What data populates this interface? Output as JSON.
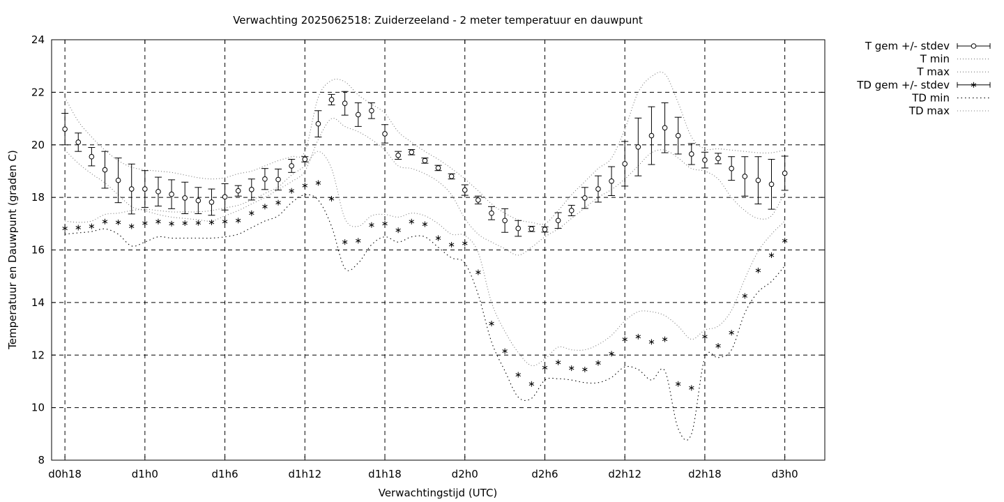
{
  "chart_data": {
    "type": "scatter",
    "title": "Verwachting 2025062518: Zuiderzeeland - 2 meter temperatuur en dauwpunt",
    "xlabel": "Verwachtingstijd (UTC)",
    "ylabel": "Temperatuur en Dauwpunt (graden C)",
    "x_unit": "hours since d0h0",
    "xlim": [
      17,
      75
    ],
    "ylim": [
      8,
      24
    ],
    "y_ticks": [
      8,
      10,
      12,
      14,
      16,
      18,
      20,
      22,
      24
    ],
    "x_ticks": [
      {
        "x": 18,
        "label": "d0h18"
      },
      {
        "x": 24,
        "label": "d1h0"
      },
      {
        "x": 30,
        "label": "d1h6"
      },
      {
        "x": 36,
        "label": "d1h12"
      },
      {
        "x": 42,
        "label": "d1h18"
      },
      {
        "x": 48,
        "label": "d2h0"
      },
      {
        "x": 54,
        "label": "d2h6"
      },
      {
        "x": 60,
        "label": "d2h12"
      },
      {
        "x": 66,
        "label": "d2h18"
      },
      {
        "x": 72,
        "label": "d3h0"
      }
    ],
    "grid": true,
    "legend_position": "outside-right",
    "legend": [
      "T gem +/- stdev",
      "T min",
      "T max",
      "TD gem +/- stdev",
      "TD min",
      "TD max"
    ],
    "x": [
      18,
      19,
      20,
      21,
      22,
      23,
      24,
      25,
      26,
      27,
      28,
      29,
      30,
      31,
      32,
      33,
      34,
      35,
      36,
      37,
      38,
      39,
      40,
      41,
      42,
      43,
      44,
      45,
      46,
      47,
      48,
      49,
      50,
      51,
      52,
      53,
      54,
      55,
      56,
      57,
      58,
      59,
      60,
      61,
      62,
      63,
      64,
      65,
      66,
      67,
      68,
      69,
      70,
      71,
      72
    ],
    "series": [
      {
        "name": "T gem +/- stdev",
        "marker": "circle",
        "values": [
          20.6,
          20.1,
          19.55,
          19.05,
          18.65,
          18.32,
          18.32,
          18.22,
          18.12,
          17.98,
          17.88,
          17.82,
          18.02,
          18.25,
          18.3,
          18.7,
          18.68,
          19.2,
          19.45,
          20.8,
          21.72,
          21.58,
          21.15,
          21.3,
          20.42,
          19.6,
          19.72,
          19.4,
          19.12,
          18.8,
          18.28,
          17.9,
          17.4,
          17.12,
          16.82,
          16.8,
          16.78,
          17.12,
          17.5,
          17.98,
          18.32,
          18.62,
          19.28,
          19.92,
          20.35,
          20.65,
          20.35,
          19.65,
          19.42,
          19.48,
          19.1,
          18.8,
          18.65,
          18.5,
          18.92
        ],
        "stdev": [
          0.6,
          0.35,
          0.35,
          0.7,
          0.85,
          0.95,
          0.7,
          0.55,
          0.55,
          0.6,
          0.5,
          0.5,
          0.5,
          0.2,
          0.4,
          0.4,
          0.4,
          0.25,
          0.1,
          0.5,
          0.2,
          0.45,
          0.45,
          0.3,
          0.35,
          0.15,
          0.1,
          0.1,
          0.1,
          0.1,
          0.2,
          0.15,
          0.25,
          0.45,
          0.3,
          0.1,
          0.1,
          0.3,
          0.2,
          0.4,
          0.5,
          0.55,
          0.85,
          1.1,
          1.1,
          0.95,
          0.7,
          0.4,
          0.3,
          0.2,
          0.45,
          0.75,
          0.9,
          0.95,
          0.65
        ]
      },
      {
        "name": "T min",
        "line": "dotted",
        "values": [
          19.8,
          19.3,
          18.9,
          18.55,
          18.1,
          17.65,
          17.5,
          17.35,
          17.25,
          17.2,
          17.15,
          17.1,
          17.3,
          17.5,
          17.75,
          18,
          18.3,
          18.6,
          19,
          20.2,
          21,
          20.7,
          20.5,
          20.2,
          19.8,
          19.2,
          19.1,
          18.9,
          18.6,
          18.1,
          17.2,
          16.6,
          16.3,
          16.05,
          15.8,
          16.1,
          16.5,
          16.8,
          17.2,
          17.6,
          18,
          18.3,
          18.7,
          19.2,
          19.7,
          19.8,
          19.5,
          19.1,
          19,
          18.7,
          18,
          17.5,
          17.2,
          17.3,
          18.2
        ]
      },
      {
        "name": "T max",
        "line": "dotted",
        "values": [
          21.8,
          20.9,
          20.3,
          19.8,
          19.4,
          19.15,
          19.05,
          19,
          18.95,
          18.85,
          18.75,
          18.7,
          18.75,
          18.9,
          19,
          19.2,
          19.4,
          19.55,
          19.75,
          21.8,
          22.45,
          22.4,
          21.9,
          21.55,
          21.2,
          20.5,
          20.1,
          19.75,
          19.45,
          19.1,
          18.7,
          18.25,
          17.75,
          17.4,
          17.15,
          17.05,
          17,
          17.5,
          18.1,
          18.6,
          19.1,
          19.5,
          20.6,
          22,
          22.6,
          22.7,
          21.6,
          20.3,
          19.85,
          19.85,
          19.8,
          19.75,
          19.7,
          19.7,
          19.8
        ]
      },
      {
        "name": "TD gem +/- stdev",
        "marker": "asterisk",
        "values": [
          16.82,
          16.85,
          16.9,
          17.08,
          17.05,
          16.9,
          17.02,
          17.08,
          17,
          17.02,
          17.03,
          17.05,
          17.08,
          17.12,
          17.4,
          17.65,
          17.8,
          18.25,
          18.45,
          18.55,
          17.95,
          16.3,
          16.35,
          16.95,
          17,
          16.75,
          17.08,
          16.98,
          16.45,
          16.2,
          16.25,
          15.15,
          13.2,
          12.15,
          11.25,
          10.9,
          11.52,
          11.72,
          11.5,
          11.45,
          11.7,
          12.05,
          12.6,
          12.7,
          12.5,
          12.6,
          10.9,
          10.75,
          12.7,
          12.35,
          12.85,
          14.25,
          15.22,
          15.8,
          16.35
        ]
      },
      {
        "name": "TD min",
        "line": "dotted",
        "values": [
          16.6,
          16.65,
          16.7,
          16.8,
          16.6,
          16.15,
          16.3,
          16.5,
          16.45,
          16.45,
          16.45,
          16.45,
          16.5,
          16.6,
          16.85,
          17.1,
          17.3,
          17.8,
          18.1,
          17.9,
          16.9,
          15.3,
          15.5,
          16.2,
          16.5,
          16.3,
          16.5,
          16.5,
          16.1,
          15.7,
          15.5,
          14.3,
          12.5,
          11.4,
          10.4,
          10.35,
          11.05,
          11.1,
          11.05,
          10.95,
          10.95,
          11.15,
          11.55,
          11.45,
          11.05,
          11.4,
          9.2,
          9,
          11.9,
          11.9,
          12.2,
          13.6,
          14.4,
          14.8,
          15.4
        ]
      },
      {
        "name": "TD max",
        "line": "dotted",
        "values": [
          17.1,
          17.05,
          17.1,
          17.35,
          17.4,
          17.5,
          17.55,
          17.5,
          17.45,
          17.45,
          17.45,
          17.5,
          17.6,
          17.7,
          17.9,
          18.15,
          18.4,
          18.85,
          19.2,
          19.75,
          19.1,
          17.2,
          16.9,
          17.3,
          17.35,
          17.25,
          17.4,
          17.3,
          17,
          16.6,
          16.55,
          15.9,
          14,
          12.9,
          12.1,
          11.6,
          11.85,
          12.3,
          12.2,
          12.2,
          12.4,
          12.75,
          13.3,
          13.65,
          13.65,
          13.5,
          13.1,
          12.6,
          12.95,
          13.1,
          13.7,
          14.9,
          15.95,
          16.6,
          17.1
        ]
      }
    ]
  }
}
